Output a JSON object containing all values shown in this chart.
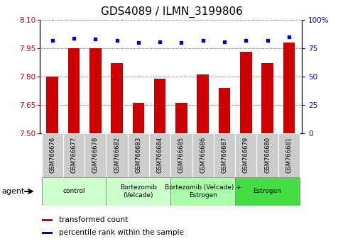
{
  "title": "GDS4089 / ILMN_3199806",
  "samples": [
    "GSM766676",
    "GSM766677",
    "GSM766678",
    "GSM766682",
    "GSM766683",
    "GSM766684",
    "GSM766685",
    "GSM766686",
    "GSM766687",
    "GSM766679",
    "GSM766680",
    "GSM766681"
  ],
  "bar_values": [
    7.8,
    7.95,
    7.95,
    7.87,
    7.66,
    7.79,
    7.66,
    7.81,
    7.74,
    7.93,
    7.87,
    7.98
  ],
  "percentile_values": [
    82,
    84,
    83,
    82,
    80,
    81,
    80,
    82,
    81,
    82,
    82,
    85
  ],
  "ylim": [
    7.5,
    8.1
  ],
  "ylim_right": [
    0,
    100
  ],
  "yticks_left": [
    7.5,
    7.65,
    7.8,
    7.95,
    8.1
  ],
  "yticks_right": [
    0,
    25,
    50,
    75,
    100
  ],
  "bar_color": "#cc0000",
  "dot_color": "#0000cc",
  "group_boundaries": [
    {
      "label": "control",
      "start": 0,
      "end": 2,
      "color": "#ccffcc"
    },
    {
      "label": "Bortezomib\n(Velcade)",
      "start": 3,
      "end": 5,
      "color": "#ccffcc"
    },
    {
      "label": "Bortezomib (Velcade) +\nEstrogen",
      "start": 6,
      "end": 8,
      "color": "#aaffaa"
    },
    {
      "label": "Estrogen",
      "start": 9,
      "end": 11,
      "color": "#44dd44"
    }
  ],
  "legend_bar_label": "transformed count",
  "legend_dot_label": "percentile rank within the sample",
  "agent_label": "agent",
  "left_tick_color": "#cc0000",
  "right_tick_color": "#0000cc",
  "title_fontsize": 11,
  "bar_width": 0.55,
  "sample_box_color": "#cccccc",
  "right_tick_labels": [
    "0",
    "25",
    "50",
    "75",
    "100%"
  ]
}
